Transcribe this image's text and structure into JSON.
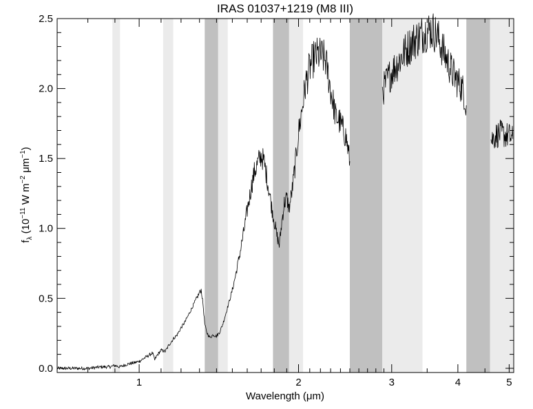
{
  "chart_data": {
    "type": "line",
    "title": "IRAS 01037+1219 (M8 III)",
    "xlabel": "Wavelength (μm)",
    "ylabel_parts": {
      "f": "f",
      "lambda": "λ",
      "open": " (10",
      "exp1": "−11",
      "w": " W m",
      "exp2": "−2",
      "um": " μm",
      "exp3": "−1",
      "close": ")"
    },
    "x_scale": "log",
    "xlim": [
      0.7,
      5.1
    ],
    "ylim": [
      -0.03,
      2.5
    ],
    "x_ticks": [
      {
        "value": 1,
        "label": "1"
      },
      {
        "value": 2,
        "label": "2"
      },
      {
        "value": 3,
        "label": "3"
      },
      {
        "value": 4,
        "label": "4"
      },
      {
        "value": 5,
        "label": "5"
      }
    ],
    "x_minor_ticks": [
      0.7,
      0.8,
      0.9,
      1.1,
      1.2,
      1.3,
      1.4,
      1.5,
      1.6,
      1.7,
      1.8,
      1.9,
      2.1,
      2.2,
      2.3,
      2.4,
      2.5,
      2.6,
      2.7,
      2.8,
      2.9,
      3.5,
      4.5
    ],
    "y_ticks": [
      {
        "value": 0.0,
        "label": "0.0"
      },
      {
        "value": 0.5,
        "label": "0.5"
      },
      {
        "value": 1.0,
        "label": "1.0"
      },
      {
        "value": 1.5,
        "label": "1.5"
      },
      {
        "value": 2.0,
        "label": "2.0"
      },
      {
        "value": 2.5,
        "label": "2.5"
      }
    ],
    "bands": [
      {
        "x0": 0.89,
        "x1": 0.92,
        "shade": "light"
      },
      {
        "x0": 1.11,
        "x1": 1.16,
        "shade": "light"
      },
      {
        "x0": 1.33,
        "x1": 1.41,
        "shade": "dark"
      },
      {
        "x0": 1.41,
        "x1": 1.47,
        "shade": "light"
      },
      {
        "x0": 1.79,
        "x1": 1.92,
        "shade": "dark"
      },
      {
        "x0": 1.92,
        "x1": 2.04,
        "shade": "light"
      },
      {
        "x0": 2.5,
        "x1": 2.88,
        "shade": "dark"
      },
      {
        "x0": 2.88,
        "x1": 3.43,
        "shade": "light"
      },
      {
        "x0": 4.15,
        "x1": 4.6,
        "shade": "dark"
      },
      {
        "x0": 4.6,
        "x1": 5.1,
        "shade": "light"
      }
    ],
    "colors": {
      "dark_band": "#c0c0c0",
      "light_band": "#ebebeb",
      "line": "#000000",
      "axes": "#000000"
    },
    "series": [
      {
        "segments": [
          {
            "x": [
              0.7,
              0.75,
              0.8,
              0.85,
              0.88,
              0.9,
              0.92,
              0.95,
              0.98,
              1.0,
              1.02,
              1.04,
              1.06,
              1.07,
              1.08,
              1.1,
              1.12,
              1.14,
              1.16,
              1.18,
              1.2,
              1.22,
              1.25,
              1.28,
              1.3,
              1.31,
              1.32,
              1.33,
              1.34,
              1.36,
              1.38,
              1.4,
              1.42,
              1.44,
              1.46,
              1.48,
              1.5,
              1.52,
              1.55,
              1.58,
              1.6,
              1.63,
              1.65,
              1.68,
              1.7,
              1.72,
              1.74,
              1.76,
              1.78,
              1.8,
              1.82,
              1.84,
              1.86,
              1.88,
              1.9,
              1.92,
              1.95,
              1.98,
              2.0,
              2.03,
              2.06,
              2.1,
              2.14,
              2.18,
              2.22,
              2.25,
              2.28,
              2.31,
              2.33,
              2.35,
              2.38,
              2.42,
              2.46,
              2.5
            ],
            "y": [
              0.0,
              0.0,
              0.0,
              0.01,
              0.01,
              0.02,
              0.01,
              0.03,
              0.04,
              0.05,
              0.07,
              0.09,
              0.11,
              0.06,
              0.09,
              0.13,
              0.12,
              0.17,
              0.21,
              0.24,
              0.29,
              0.33,
              0.41,
              0.49,
              0.54,
              0.56,
              0.46,
              0.32,
              0.26,
              0.22,
              0.24,
              0.23,
              0.26,
              0.32,
              0.4,
              0.48,
              0.56,
              0.66,
              0.82,
              1.0,
              1.13,
              1.3,
              1.4,
              1.48,
              1.52,
              1.48,
              1.38,
              1.27,
              1.15,
              1.05,
              0.95,
              0.88,
              1.05,
              1.18,
              1.22,
              1.14,
              1.3,
              1.52,
              1.68,
              1.85,
              2.02,
              2.15,
              2.22,
              2.24,
              2.23,
              2.2,
              2.08,
              1.95,
              1.88,
              1.8,
              1.78,
              1.72,
              1.65,
              1.48
            ]
          },
          {
            "x": [
              2.88,
              2.92,
              2.96,
              3.0,
              3.05,
              3.1,
              3.15,
              3.2,
              3.25,
              3.3,
              3.35,
              3.4,
              3.45,
              3.5,
              3.55,
              3.6,
              3.65,
              3.7,
              3.75,
              3.8,
              3.85,
              3.9,
              3.95,
              4.0,
              4.05,
              4.1,
              4.15
            ],
            "y": [
              1.98,
              2.03,
              2.08,
              2.12,
              2.16,
              2.2,
              2.24,
              2.28,
              2.31,
              2.34,
              2.36,
              2.38,
              2.4,
              2.41,
              2.42,
              2.41,
              2.38,
              2.33,
              2.27,
              2.22,
              2.17,
              2.12,
              2.08,
              2.05,
              2.02,
              1.98,
              1.88
            ]
          },
          {
            "x": [
              4.62,
              4.7,
              4.8,
              4.9,
              5.0,
              5.08
            ],
            "y": [
              1.63,
              1.66,
              1.68,
              1.67,
              1.66,
              1.64
            ]
          }
        ]
      }
    ]
  }
}
